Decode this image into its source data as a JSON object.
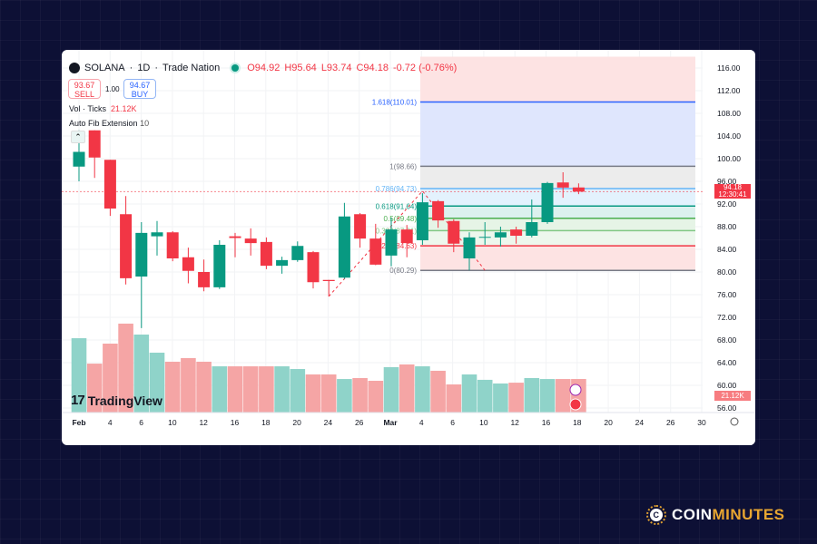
{
  "header": {
    "symbol": "SOLANA",
    "interval": "1D",
    "broker": "Trade Nation",
    "open": "O94.92",
    "high": "H95.64",
    "low": "L93.74",
    "close": "C94.18",
    "change": "-0.72 (-0.76%)"
  },
  "trade": {
    "sell_price": "93.67",
    "sell_label": "SELL",
    "quantity": "1.00",
    "buy_price": "94.67",
    "buy_label": "BUY"
  },
  "indicators": {
    "vol_label": "Vol · Ticks",
    "vol_value": "21.12K",
    "fib_label": "Auto Fib Extension",
    "fib_value": "10"
  },
  "branding": {
    "tradingview": "TradingView",
    "site_part1": "COIN",
    "site_part2": "MINUTES"
  },
  "price_label": {
    "price": "94.18",
    "countdown": "12:30:41"
  },
  "volume_label": "21.12K",
  "colors": {
    "up": "#089981",
    "down": "#f23645",
    "vol_up": "#8fd3c9",
    "vol_down": "#f5a5a5",
    "brand_accent": "#e8a631"
  },
  "chart_data": {
    "type": "candlestick",
    "y_axis": {
      "ticks": [
        "116.00",
        "112.00",
        "108.00",
        "104.00",
        "100.00",
        "96.00",
        "92.00",
        "88.00",
        "84.00",
        "80.00",
        "76.00",
        "72.00",
        "68.00",
        "64.00",
        "60.00",
        "56.00"
      ],
      "range": [
        56,
        116
      ]
    },
    "x_axis": {
      "ticks": [
        "Feb",
        "4",
        "6",
        "10",
        "12",
        "16",
        "18",
        "20",
        "24",
        "26",
        "Mar",
        "4",
        "6",
        "10",
        "12",
        "16",
        "18",
        "20",
        "24",
        "26",
        "30"
      ]
    },
    "candles": [
      [
        98.6,
        105,
        96,
        101.2
      ],
      [
        105,
        105,
        96.6,
        100.2
      ],
      [
        99.8,
        99.8,
        89.9,
        91.2
      ],
      [
        90.2,
        93.4,
        77.8,
        78.9
      ],
      [
        79.2,
        88.8,
        70.1,
        86.9
      ],
      [
        86.3,
        89,
        82.9,
        87
      ],
      [
        87,
        87.2,
        81.9,
        82.4
      ],
      [
        82.6,
        84.3,
        78,
        80.2
      ],
      [
        80,
        82.2,
        76.6,
        77.3
      ],
      [
        77.3,
        85.6,
        77,
        84.8
      ],
      [
        86.3,
        86.9,
        82.6,
        86
      ],
      [
        85.9,
        87.7,
        82.9,
        85.1
      ],
      [
        85.3,
        86.1,
        80.5,
        81.1
      ],
      [
        81.1,
        82.7,
        79.7,
        82.1
      ],
      [
        82.1,
        85.4,
        81.8,
        84.6
      ],
      [
        83.5,
        83.7,
        77.1,
        78.2
      ],
      [
        78.6,
        78.6,
        75.7,
        78.4
      ],
      [
        79,
        92.2,
        78.8,
        89.8
      ],
      [
        90.2,
        90.4,
        84.3,
        85.9
      ],
      [
        85.9,
        88.5,
        81.2,
        81.3
      ],
      [
        82.9,
        89.6,
        81,
        87.5
      ],
      [
        87.5,
        88.3,
        82.6,
        85.1
      ],
      [
        85.6,
        93.9,
        84.8,
        92.3
      ],
      [
        92.5,
        92.7,
        87.8,
        89.1
      ],
      [
        89,
        89.3,
        83.5,
        85
      ],
      [
        82.4,
        87,
        80.3,
        86.1
      ],
      [
        86.2,
        88.8,
        84.8,
        86.2
      ],
      [
        86.1,
        88,
        84.5,
        87
      ],
      [
        87.5,
        88,
        85,
        86.4
      ],
      [
        86.4,
        92.8,
        86.1,
        88.8
      ],
      [
        88.8,
        95.9,
        88.5,
        95.7
      ],
      [
        95.8,
        97.6,
        93.1,
        94.9
      ],
      [
        94.92,
        95.64,
        93.74,
        94.18
      ]
    ],
    "volume_k": [
      46.8,
      30.8,
      43.4,
      56,
      49.1,
      37.7,
      32,
      34.3,
      32,
      29.1,
      29.1,
      29.1,
      29.1,
      29.1,
      27.4,
      24,
      24,
      21.1,
      21.7,
      20,
      28.6,
      30.3,
      29.1,
      26.3,
      17.7,
      24,
      20.6,
      18.3,
      18.8,
      21.7,
      21.1,
      21.1,
      21.12
    ],
    "fib_levels": [
      {
        "label": "1.618(110.01)",
        "value": 110.01,
        "color": "#2962ff"
      },
      {
        "label": "1(98.66)",
        "value": 98.66,
        "color": "#787b86"
      },
      {
        "label": "0.786(94.73)",
        "value": 94.73,
        "color": "#64b5f6"
      },
      {
        "label": "0.618(91.64)",
        "value": 91.64,
        "color": "#089981"
      },
      {
        "label": "0.5(89.48)",
        "value": 89.48,
        "color": "#4caf50"
      },
      {
        "label": "0.382(87.31)",
        "value": 87.31,
        "color": "#81c784"
      },
      {
        "label": "0.236(84.63)",
        "value": 84.63,
        "color": "#f23645"
      },
      {
        "label": "0(80.29)",
        "value": 80.29,
        "color": "#787b86"
      }
    ],
    "last_price": 94.18
  }
}
